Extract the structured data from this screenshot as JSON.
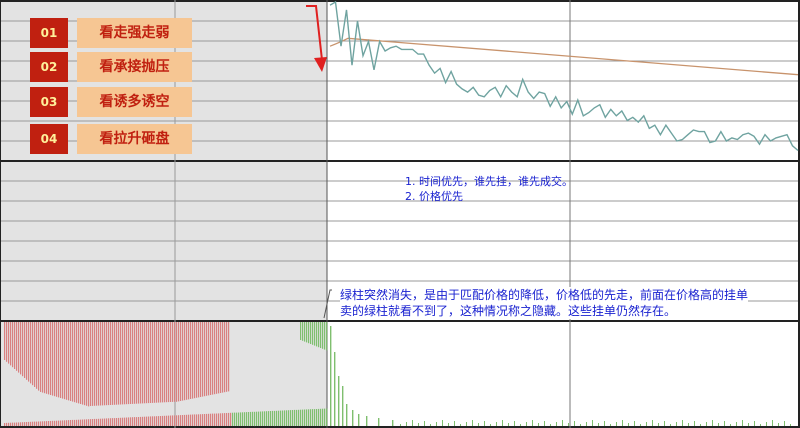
{
  "legend": [
    {
      "num": "01",
      "label": "看走强走弱"
    },
    {
      "num": "02",
      "label": "看承接抛压"
    },
    {
      "num": "03",
      "label": "看诱多诱空"
    },
    {
      "num": "04",
      "label": "看拉升砸盘"
    }
  ],
  "notes": {
    "priority_line1": "1. 时间优先，谁先挂，谁先成交。",
    "priority_line2": "2. 价格优先",
    "hidden_line1": "绿柱突然消失，是由于匹配价格的降低，价格低的先走，前面在价格高的挂单",
    "hidden_line2": "卖的绿柱就看不到了，这种情况称之隐藏。这些挂单仍然存在。"
  },
  "colors": {
    "price_line": "#6fa3a0",
    "avg_line": "#c8936c",
    "bid_bar": "#d98080",
    "ask_bar": "#7fbf6f",
    "shaded_region": "#e3e3e3",
    "arrow": "#e02020",
    "note_text": "#1a22d0"
  },
  "icons": [
    "down-arrow-icon"
  ],
  "chart_data": {
    "type": "line",
    "note": "intraday price chart with order-book volume bars; no printed axis values",
    "price_series": [
      98,
      100,
      72,
      95,
      60,
      88,
      66,
      75,
      57,
      75,
      69,
      71,
      72,
      70,
      70,
      70,
      67,
      67,
      60,
      55,
      58,
      49,
      56,
      48,
      45,
      43,
      46,
      41,
      40,
      44,
      46,
      40,
      47,
      43,
      40,
      51,
      43,
      39,
      43,
      42,
      34,
      40,
      33,
      37,
      29,
      38,
      28,
      30,
      33,
      35,
      27,
      32,
      28,
      31,
      25,
      27,
      24,
      28,
      20,
      22,
      16,
      22,
      17,
      12,
      13,
      16,
      19,
      18,
      18,
      11,
      12,
      18,
      12,
      14,
      13,
      16,
      17,
      15,
      10,
      16,
      12,
      14,
      15,
      16,
      9,
      6
    ],
    "avg_series_start": 77,
    "avg_series_end": 54
  }
}
